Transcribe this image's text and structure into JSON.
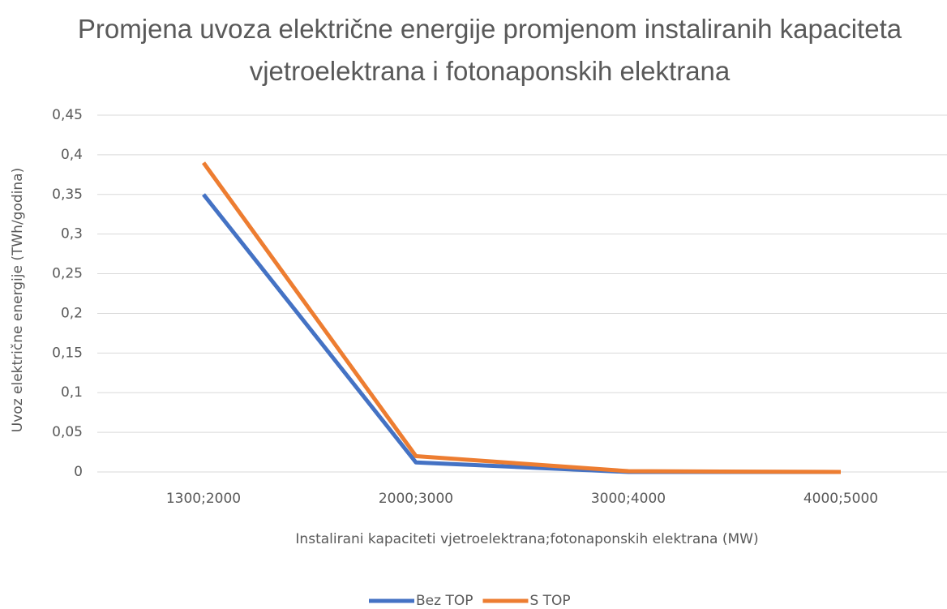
{
  "chart_data": {
    "type": "line",
    "title": "Promjena uvoza električne energije promjenom instaliranih kapaciteta vjetroelektrana i fotonaponskih elektrana",
    "x_label": "Instalirani kapaciteti vjetroelektrana;fotonaponskih elektrana (MW)",
    "y_label": "Uvoz električne energije (TWh/godina)",
    "categories": [
      "1300;2000",
      "2000;3000",
      "3000;4000",
      "4000;5000"
    ],
    "series": [
      {
        "name": "Bez TOP",
        "color": "#4472c4",
        "values": [
          0.35,
          0.012,
          0,
          0
        ]
      },
      {
        "name": "S TOP",
        "color": "#ed7d31",
        "values": [
          0.39,
          0.02,
          0.001,
          0
        ]
      }
    ],
    "ylim": [
      0,
      0.45
    ],
    "yticks": [
      0,
      {
        "value": 0.05,
        "label": "0,05"
      },
      {
        "value": 0.1,
        "label": "0,1"
      },
      {
        "value": 0.15,
        "label": "0,15"
      },
      {
        "value": 0.2,
        "label": "0,2"
      },
      {
        "value": 0.25,
        "label": "0,25"
      },
      {
        "value": 0.3,
        "label": "0,3"
      },
      {
        "value": 0.35,
        "label": "0,35"
      },
      {
        "value": 0.4,
        "label": "0,4"
      },
      {
        "value": 0.45,
        "label": "0,45"
      }
    ],
    "grid": true,
    "legend": "bottom"
  }
}
